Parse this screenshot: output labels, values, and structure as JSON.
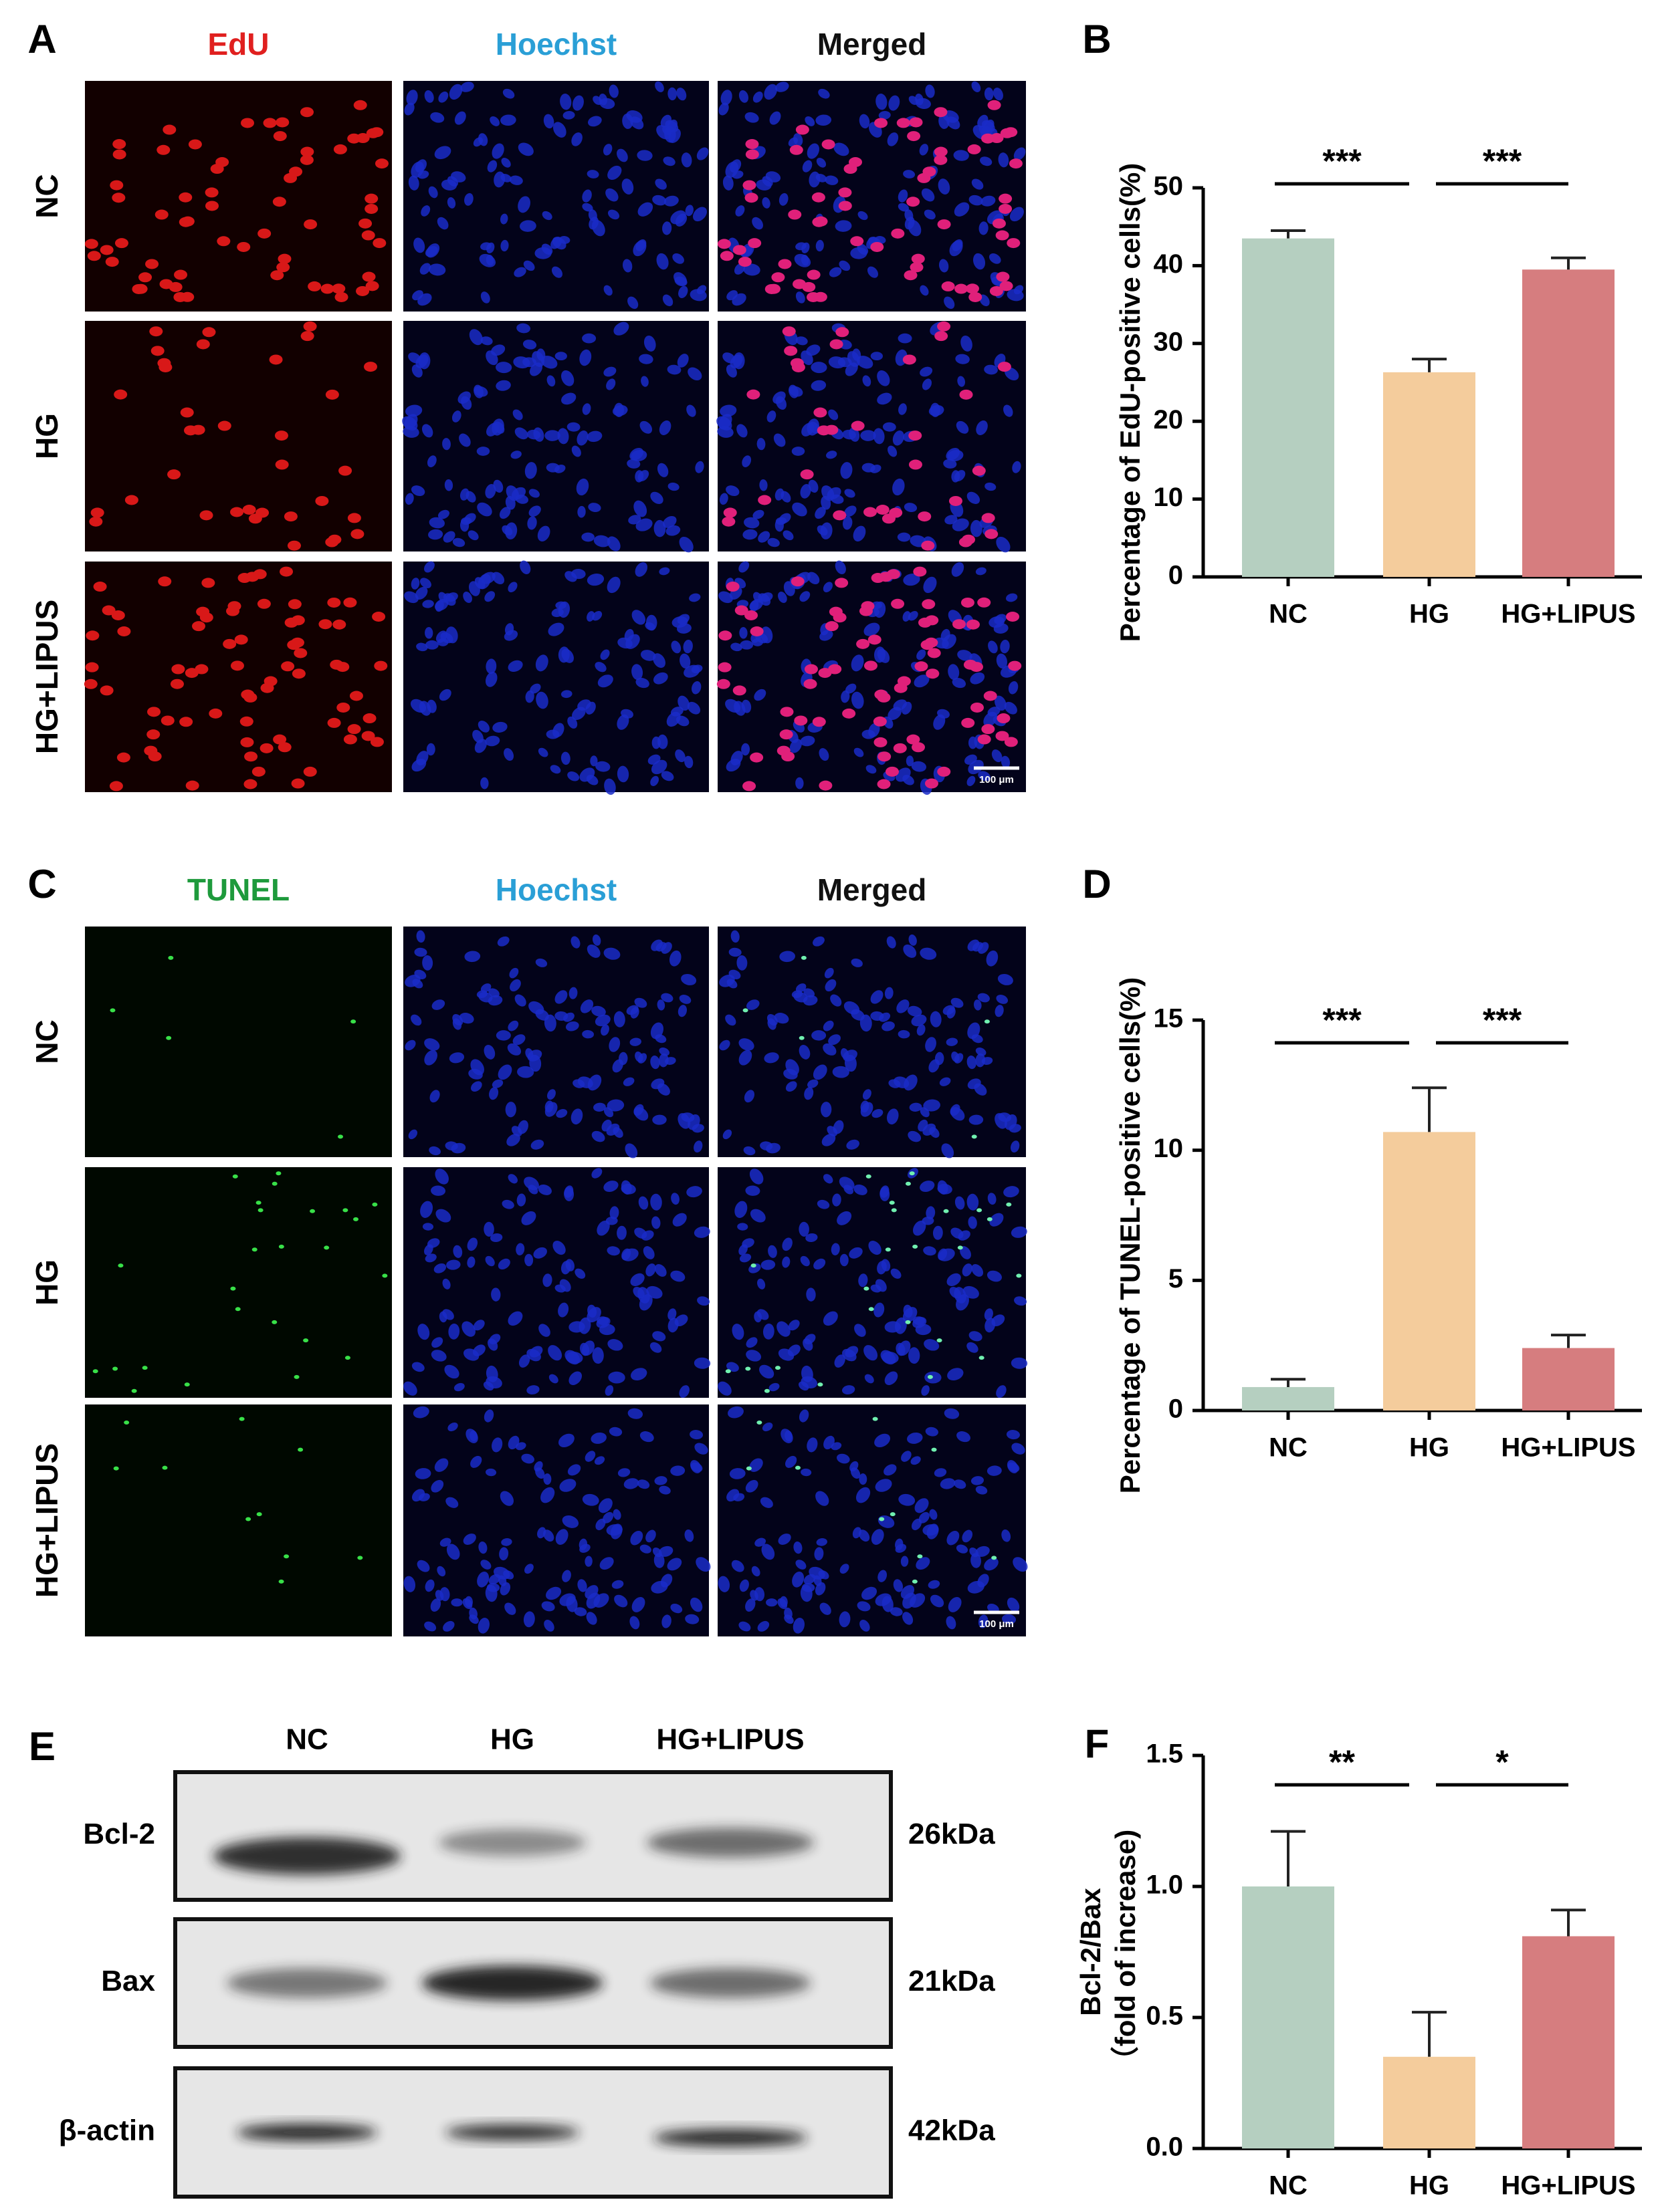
{
  "figure": {
    "panel_letters": [
      "A",
      "B",
      "C",
      "D",
      "E",
      "F"
    ],
    "edu_panel": {
      "columns": [
        "EdU",
        "Hoechst",
        "Merged"
      ],
      "column_colors": [
        "#e0201f",
        "#2a9fd6",
        "#111111"
      ],
      "rows": [
        "NC",
        "HG",
        "HG+LIPUS"
      ],
      "scale_bar": "100 μm"
    },
    "tunel_panel": {
      "columns": [
        "TUNEL",
        "Hoechst",
        "Merged"
      ],
      "column_colors": [
        "#1e9a3c",
        "#2a9fd6",
        "#111111"
      ],
      "rows": [
        "NC",
        "HG",
        "HG+LIPUS"
      ],
      "scale_bar": "100 μm"
    },
    "western_blot": {
      "lanes": [
        "NC",
        "HG",
        "HG+LIPUS"
      ],
      "proteins": [
        "Bcl-2",
        "Bax",
        "β-actin"
      ],
      "sizes": [
        "26kDa",
        "21kDa",
        "42kDa"
      ]
    }
  },
  "chart_data": [
    {
      "type": "bar",
      "ylabel": "Percentage of EdU-positive cells(%)",
      "categories": [
        "NC",
        "HG",
        "HG+LIPUS"
      ],
      "values": [
        43.5,
        26.3,
        39.5
      ],
      "errors": [
        1.0,
        1.7,
        1.5
      ],
      "colors": [
        "#b5cfc0",
        "#f4cc9c",
        "#d67d7f"
      ],
      "ylim": [
        0,
        50
      ],
      "yticks": [
        0,
        10,
        20,
        30,
        40,
        50
      ],
      "significance": [
        "***",
        "***"
      ]
    },
    {
      "type": "bar",
      "ylabel": "Percentage of TUNEL-positive cells(%)",
      "categories": [
        "NC",
        "HG",
        "HG+LIPUS"
      ],
      "values": [
        0.9,
        10.7,
        2.4
      ],
      "errors": [
        0.3,
        1.7,
        0.5
      ],
      "colors": [
        "#b5cfc0",
        "#f4cc9c",
        "#d67d7f"
      ],
      "ylim": [
        0,
        15
      ],
      "yticks": [
        0,
        5,
        10,
        15
      ],
      "significance": [
        "***",
        "***"
      ]
    },
    {
      "type": "bar",
      "ylabel": [
        "Bcl-2/Bax",
        "（fold of increase)"
      ],
      "categories": [
        "NC",
        "HG",
        "HG+LIPUS"
      ],
      "values": [
        1.0,
        0.35,
        0.81
      ],
      "errors": [
        0.21,
        0.17,
        0.1
      ],
      "colors": [
        "#b5cfc0",
        "#f4cc9c",
        "#d67d7f"
      ],
      "ylim": [
        0,
        1.5
      ],
      "yticks": [
        {
          "value": 0,
          "label": "0.0"
        },
        0.5,
        {
          "value": 1,
          "label": "1.0"
        },
        1.5
      ],
      "significance": [
        "**",
        "*"
      ]
    }
  ]
}
